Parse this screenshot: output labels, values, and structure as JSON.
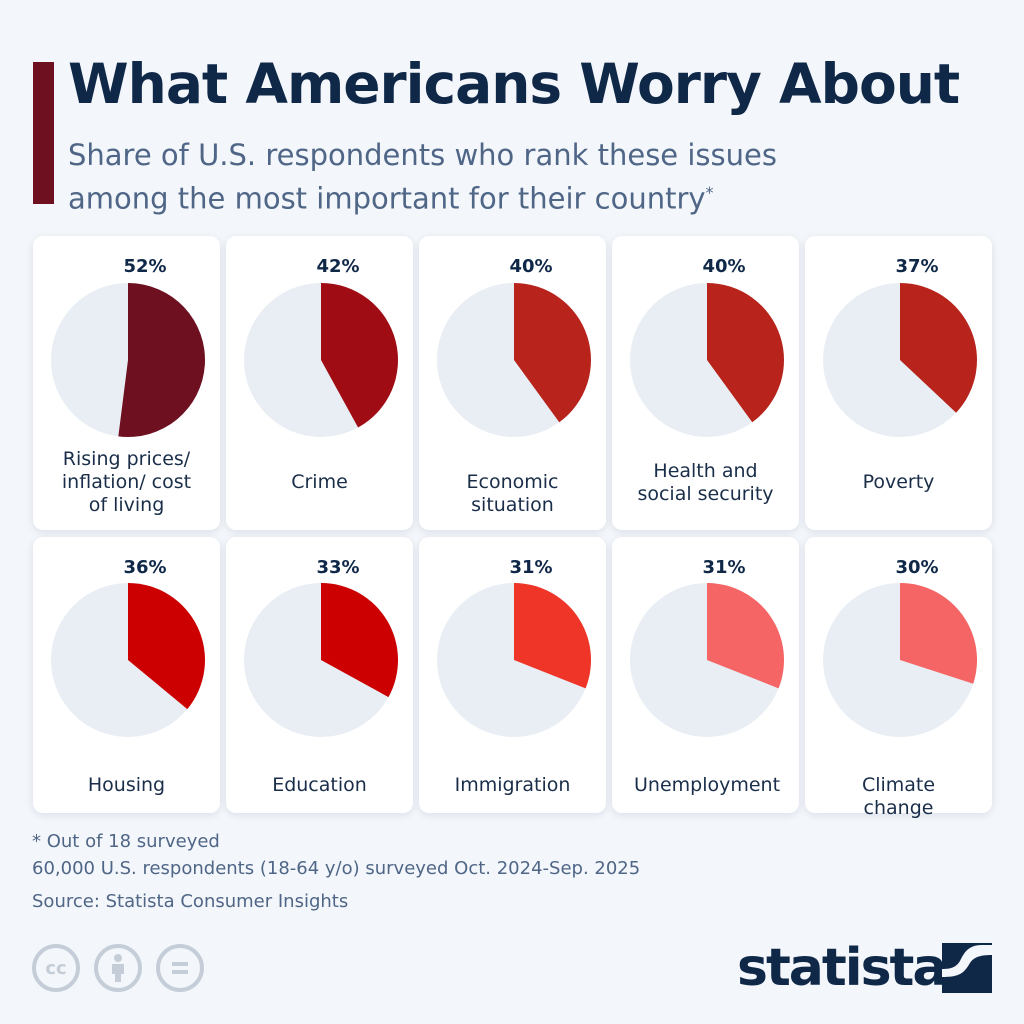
{
  "header": {
    "title": "What Americans Worry About",
    "subtitle": "Share of U.S. respondents who rank these issues among the most important for their country",
    "subtitle_mark": "*"
  },
  "colors": {
    "accent": "#6e1020",
    "pie_background": "#e8eef4",
    "title": "#0f2848"
  },
  "chart_data": {
    "type": "pie",
    "unit": "%",
    "items": [
      {
        "label": "Rising prices/ inflation/ cost of living",
        "value": 52,
        "pct": "52%",
        "color": "#6e1020"
      },
      {
        "label": "Crime",
        "value": 42,
        "pct": "42%",
        "color": "#a00c14"
      },
      {
        "label": "Economic situation",
        "value": 40,
        "pct": "40%",
        "color": "#b8231c"
      },
      {
        "label": "Health and social security",
        "value": 40,
        "pct": "40%",
        "color": "#b8231c"
      },
      {
        "label": "Poverty",
        "value": 37,
        "pct": "37%",
        "color": "#b8231c"
      },
      {
        "label": "Housing",
        "value": 36,
        "pct": "36%",
        "color": "#cc0000"
      },
      {
        "label": "Education",
        "value": 33,
        "pct": "33%",
        "color": "#cc0000"
      },
      {
        "label": "Immigration",
        "value": 31,
        "pct": "31%",
        "color": "#ee3528"
      },
      {
        "label": "Unemployment",
        "value": 31,
        "pct": "31%",
        "color": "#f66565"
      },
      {
        "label": "Climate change",
        "value": 30,
        "pct": "30%",
        "color": "#f66565"
      }
    ]
  },
  "footer": {
    "note": "* Out of 18 surveyed",
    "survey": "60,000 U.S. respondents (18-64 y/o) surveyed Oct. 2024-Sep. 2025",
    "source": "Source: Statista Consumer Insights",
    "license_icons": [
      "cc-icon",
      "attribution-icon",
      "no-derivatives-icon"
    ],
    "logo": "statista"
  }
}
